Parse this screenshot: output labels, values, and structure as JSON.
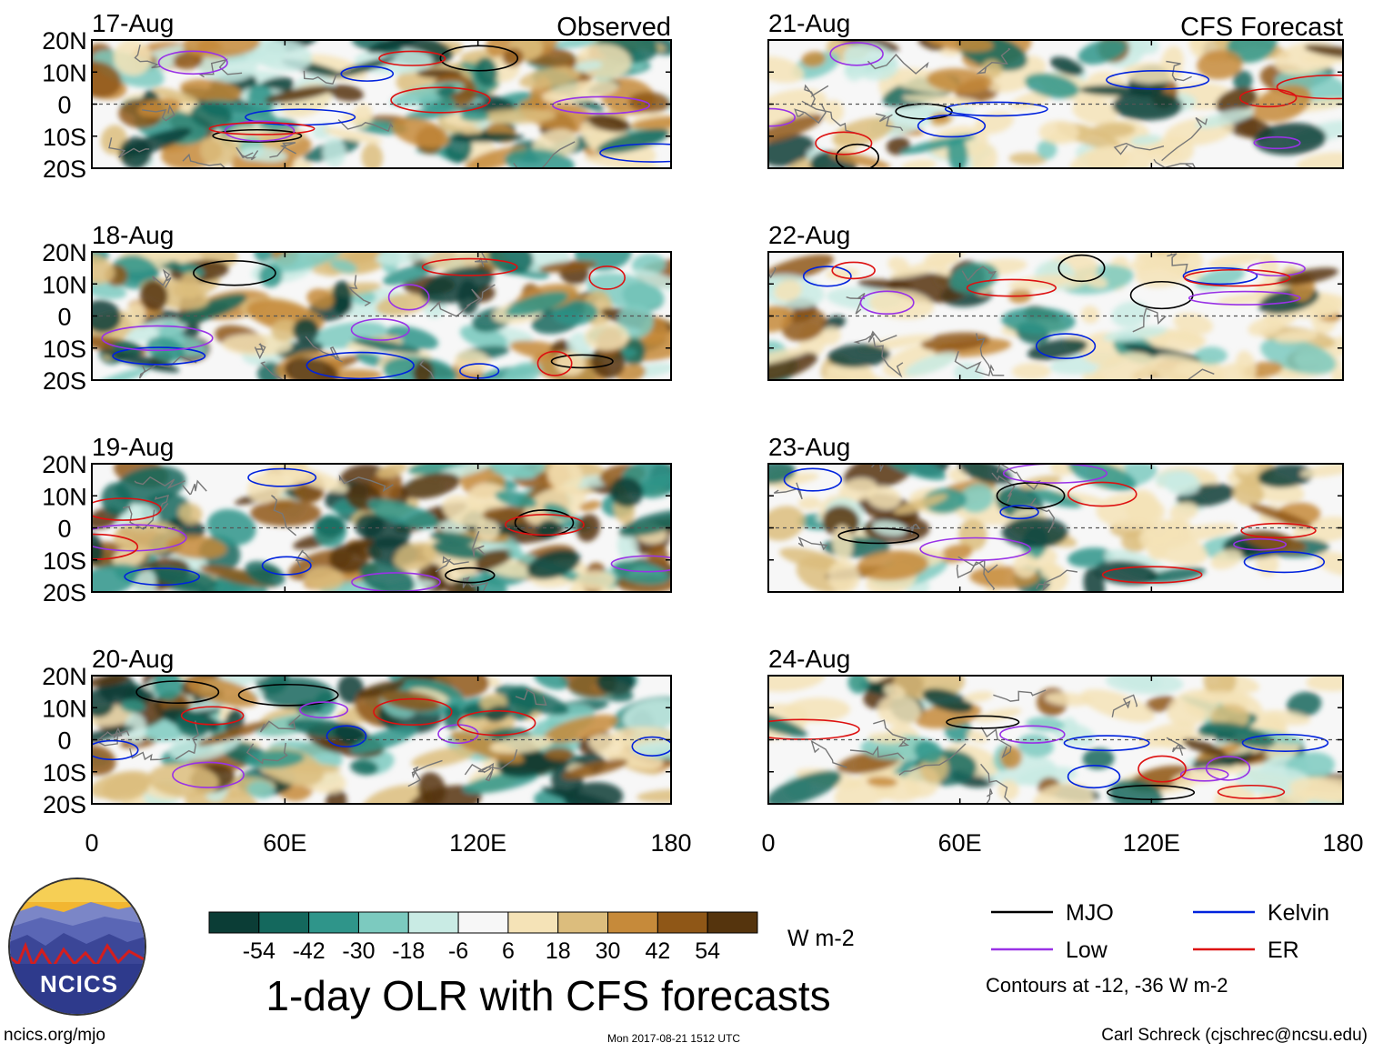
{
  "chart_data": {
    "type": "heatmap",
    "title": "1-day OLR with CFS forecasts",
    "units": "W m-2",
    "xaxis": {
      "ticks": [
        "0",
        "60E",
        "120E",
        "180"
      ],
      "range": [
        0,
        180
      ]
    },
    "yaxis": {
      "ticks": [
        "20N",
        "10N",
        "0",
        "10S",
        "20S"
      ],
      "range": [
        -20,
        20
      ]
    },
    "column_headers": {
      "observed": "Observed",
      "forecast": "CFS Forecast"
    },
    "panels": [
      {
        "date": "17-Aug",
        "kind": "observed"
      },
      {
        "date": "18-Aug",
        "kind": "observed"
      },
      {
        "date": "19-Aug",
        "kind": "observed"
      },
      {
        "date": "20-Aug",
        "kind": "observed"
      },
      {
        "date": "21-Aug",
        "kind": "forecast"
      },
      {
        "date": "22-Aug",
        "kind": "forecast"
      },
      {
        "date": "23-Aug",
        "kind": "forecast"
      },
      {
        "date": "24-Aug",
        "kind": "forecast"
      }
    ],
    "colorbar": {
      "labels": [
        "-54",
        "-42",
        "-30",
        "-18",
        "-6",
        "6",
        "18",
        "30",
        "42",
        "54"
      ],
      "colors": [
        "#0b3d36",
        "#14685d",
        "#2f958a",
        "#7ccabf",
        "#c9ebe4",
        "#f7f7f7",
        "#f5e3b7",
        "#dcbd7d",
        "#c68a3a",
        "#8f5717",
        "#55340d"
      ]
    },
    "legend": {
      "items": [
        {
          "name": "MJO",
          "color": "#000000"
        },
        {
          "name": "Kelvin",
          "color": "#0022dd"
        },
        {
          "name": "Low",
          "color": "#9932e6"
        },
        {
          "name": "ER",
          "color": "#dd1111"
        }
      ],
      "note": "Contours at -12, -36 W m-2"
    }
  },
  "logo": {
    "text": "NCICS"
  },
  "footer": {
    "left": "ncics.org/mjo",
    "center": "Mon 2017-08-21 1512 UTC",
    "right": "Carl Schreck (cjschrec@ncsu.edu)"
  }
}
